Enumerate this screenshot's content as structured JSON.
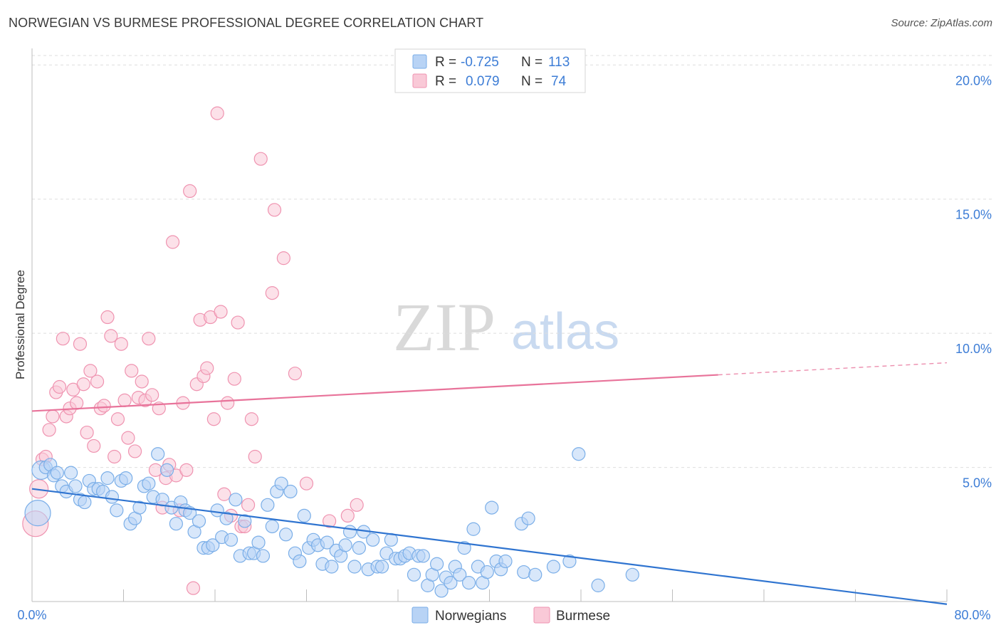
{
  "title": "NORWEGIAN VS BURMESE PROFESSIONAL DEGREE CORRELATION CHART",
  "source": "Source: ZipAtlas.com",
  "watermark": {
    "zip": "ZIP",
    "atlas": "atlas"
  },
  "legend_top": [
    {
      "r_label": "R =",
      "r_value": "-0.725",
      "n_label": "N =",
      "n_value": "113",
      "color": "#7aaee8",
      "fill": "#b8d3f5"
    },
    {
      "r_label": "R =",
      "r_value": "0.079",
      "n_label": "N =",
      "n_value": "74",
      "color": "#ef93b0",
      "fill": "#f9c9d7"
    }
  ],
  "legend_bottom": [
    {
      "label": "Norwegians",
      "color": "#7aaee8",
      "fill": "#b8d3f5"
    },
    {
      "label": "Burmese",
      "color": "#ef93b0",
      "fill": "#f9c9d7"
    }
  ],
  "colors": {
    "blue_line": "#2f74d0",
    "pink_line": "#e8739a",
    "tick_text": "#3d7dd6",
    "grid": "#dedede"
  },
  "chart_data": {
    "type": "scatter",
    "title": "NORWEGIAN VS BURMESE PROFESSIONAL DEGREE CORRELATION CHART",
    "xlabel": "",
    "ylabel": "Professional Degree",
    "xlim": [
      0,
      80
    ],
    "ylim": [
      0,
      21
    ],
    "x_tick_labels": [
      "0.0%",
      "80.0%"
    ],
    "y_ticks": [
      5,
      10,
      15,
      20
    ],
    "y_tick_labels": [
      "5.0%",
      "10.0%",
      "15.0%",
      "20.0%"
    ],
    "grid": true,
    "legend": "top-center",
    "series": [
      {
        "name": "Norwegians",
        "r": -0.725,
        "n": 113,
        "trend": {
          "x0": 0,
          "y0": 4.2,
          "x1": 80,
          "y1": -0.1
        },
        "points": [
          [
            0.5,
            3.3
          ],
          [
            0.8,
            4.9
          ],
          [
            1.2,
            5.0
          ],
          [
            1.6,
            5.1
          ],
          [
            1.9,
            4.7
          ],
          [
            2.2,
            4.8
          ],
          [
            2.6,
            4.3
          ],
          [
            3.0,
            4.1
          ],
          [
            3.4,
            4.8
          ],
          [
            3.8,
            4.3
          ],
          [
            4.2,
            3.8
          ],
          [
            4.6,
            3.7
          ],
          [
            5.0,
            4.5
          ],
          [
            5.4,
            4.2
          ],
          [
            5.8,
            4.2
          ],
          [
            6.2,
            4.1
          ],
          [
            6.6,
            4.6
          ],
          [
            7.0,
            3.9
          ],
          [
            7.4,
            3.4
          ],
          [
            7.8,
            4.5
          ],
          [
            8.2,
            4.6
          ],
          [
            8.6,
            2.9
          ],
          [
            9.0,
            3.1
          ],
          [
            9.4,
            3.5
          ],
          [
            9.8,
            4.3
          ],
          [
            10.2,
            4.4
          ],
          [
            10.6,
            3.9
          ],
          [
            11.0,
            5.5
          ],
          [
            11.4,
            3.8
          ],
          [
            11.8,
            4.9
          ],
          [
            12.2,
            3.5
          ],
          [
            12.6,
            2.9
          ],
          [
            13.0,
            3.7
          ],
          [
            13.4,
            3.4
          ],
          [
            13.8,
            3.3
          ],
          [
            14.2,
            2.6
          ],
          [
            14.6,
            3.0
          ],
          [
            15.0,
            2.0
          ],
          [
            15.4,
            2.0
          ],
          [
            15.8,
            2.1
          ],
          [
            16.2,
            3.4
          ],
          [
            16.6,
            2.4
          ],
          [
            17.0,
            3.1
          ],
          [
            17.4,
            2.3
          ],
          [
            17.8,
            3.8
          ],
          [
            18.2,
            1.7
          ],
          [
            18.6,
            3.0
          ],
          [
            19.0,
            1.8
          ],
          [
            19.4,
            1.8
          ],
          [
            19.8,
            2.2
          ],
          [
            20.2,
            1.7
          ],
          [
            20.6,
            3.6
          ],
          [
            21.0,
            2.8
          ],
          [
            21.4,
            4.1
          ],
          [
            21.8,
            4.4
          ],
          [
            22.2,
            2.5
          ],
          [
            22.6,
            4.1
          ],
          [
            23.0,
            1.8
          ],
          [
            23.4,
            1.5
          ],
          [
            23.8,
            3.2
          ],
          [
            24.2,
            2.0
          ],
          [
            24.6,
            2.3
          ],
          [
            25.0,
            2.1
          ],
          [
            25.4,
            1.4
          ],
          [
            25.8,
            2.2
          ],
          [
            26.2,
            1.3
          ],
          [
            26.6,
            1.9
          ],
          [
            27.0,
            1.7
          ],
          [
            27.4,
            2.1
          ],
          [
            27.8,
            2.6
          ],
          [
            28.2,
            1.3
          ],
          [
            28.6,
            2.0
          ],
          [
            29.0,
            2.6
          ],
          [
            29.4,
            1.2
          ],
          [
            29.8,
            2.3
          ],
          [
            30.2,
            1.3
          ],
          [
            30.6,
            1.3
          ],
          [
            31.0,
            1.8
          ],
          [
            31.4,
            2.3
          ],
          [
            31.8,
            1.6
          ],
          [
            32.2,
            1.6
          ],
          [
            32.6,
            1.7
          ],
          [
            33.0,
            1.8
          ],
          [
            33.4,
            1.0
          ],
          [
            33.8,
            1.7
          ],
          [
            34.2,
            1.7
          ],
          [
            34.6,
            0.6
          ],
          [
            35.0,
            1.0
          ],
          [
            35.4,
            1.4
          ],
          [
            35.8,
            0.4
          ],
          [
            36.2,
            0.9
          ],
          [
            36.6,
            0.7
          ],
          [
            37.0,
            1.3
          ],
          [
            37.4,
            1.0
          ],
          [
            37.8,
            2.0
          ],
          [
            38.2,
            0.7
          ],
          [
            38.6,
            2.7
          ],
          [
            39.0,
            1.3
          ],
          [
            39.4,
            0.7
          ],
          [
            39.8,
            1.1
          ],
          [
            40.2,
            3.5
          ],
          [
            40.6,
            1.5
          ],
          [
            41.0,
            1.2
          ],
          [
            41.4,
            1.5
          ],
          [
            42.8,
            2.9
          ],
          [
            43.0,
            1.1
          ],
          [
            43.4,
            3.1
          ],
          [
            44.0,
            1.0
          ],
          [
            45.6,
            1.3
          ],
          [
            47.0,
            1.5
          ],
          [
            47.8,
            5.5
          ],
          [
            49.5,
            0.6
          ],
          [
            52.5,
            1.0
          ]
        ]
      },
      {
        "name": "Burmese",
        "r": 0.079,
        "n": 74,
        "trend": {
          "x0": 0,
          "y0": 7.1,
          "x1": 80,
          "y1": 8.9
        },
        "points": [
          [
            0.3,
            2.9
          ],
          [
            0.6,
            4.2
          ],
          [
            0.9,
            5.3
          ],
          [
            1.2,
            5.4
          ],
          [
            1.5,
            6.4
          ],
          [
            1.8,
            6.9
          ],
          [
            2.1,
            7.8
          ],
          [
            2.4,
            8.0
          ],
          [
            2.7,
            9.8
          ],
          [
            3.0,
            6.9
          ],
          [
            3.3,
            7.2
          ],
          [
            3.6,
            7.9
          ],
          [
            3.9,
            7.4
          ],
          [
            4.2,
            9.6
          ],
          [
            4.5,
            8.1
          ],
          [
            4.8,
            6.3
          ],
          [
            5.1,
            8.6
          ],
          [
            5.4,
            5.8
          ],
          [
            5.7,
            8.2
          ],
          [
            6.0,
            7.2
          ],
          [
            6.3,
            7.3
          ],
          [
            6.6,
            10.6
          ],
          [
            6.9,
            9.9
          ],
          [
            7.2,
            5.4
          ],
          [
            7.5,
            6.8
          ],
          [
            7.8,
            9.6
          ],
          [
            8.1,
            7.5
          ],
          [
            8.4,
            6.1
          ],
          [
            8.7,
            8.6
          ],
          [
            9.0,
            5.6
          ],
          [
            9.3,
            7.6
          ],
          [
            9.6,
            8.2
          ],
          [
            9.9,
            7.5
          ],
          [
            10.2,
            9.8
          ],
          [
            10.5,
            7.7
          ],
          [
            10.8,
            4.9
          ],
          [
            11.1,
            7.2
          ],
          [
            11.4,
            3.5
          ],
          [
            11.7,
            4.6
          ],
          [
            12.0,
            5.1
          ],
          [
            12.3,
            13.4
          ],
          [
            12.6,
            4.7
          ],
          [
            12.9,
            3.4
          ],
          [
            13.2,
            7.4
          ],
          [
            13.5,
            4.9
          ],
          [
            13.8,
            15.3
          ],
          [
            14.1,
            0.5
          ],
          [
            14.4,
            8.1
          ],
          [
            14.7,
            10.5
          ],
          [
            15.0,
            8.4
          ],
          [
            15.3,
            8.7
          ],
          [
            15.6,
            10.6
          ],
          [
            15.9,
            6.8
          ],
          [
            16.2,
            18.2
          ],
          [
            16.5,
            10.8
          ],
          [
            16.8,
            4.0
          ],
          [
            17.1,
            7.4
          ],
          [
            17.4,
            3.2
          ],
          [
            17.7,
            8.3
          ],
          [
            18.0,
            10.4
          ],
          [
            18.3,
            2.8
          ],
          [
            18.6,
            2.8
          ],
          [
            18.9,
            3.6
          ],
          [
            19.2,
            6.8
          ],
          [
            19.5,
            5.4
          ],
          [
            20.0,
            16.5
          ],
          [
            21.0,
            11.5
          ],
          [
            21.2,
            14.6
          ],
          [
            22.0,
            12.8
          ],
          [
            23.0,
            8.5
          ],
          [
            24.0,
            4.4
          ],
          [
            26.0,
            3.0
          ],
          [
            27.6,
            3.2
          ],
          [
            28.4,
            3.6
          ]
        ]
      }
    ]
  }
}
